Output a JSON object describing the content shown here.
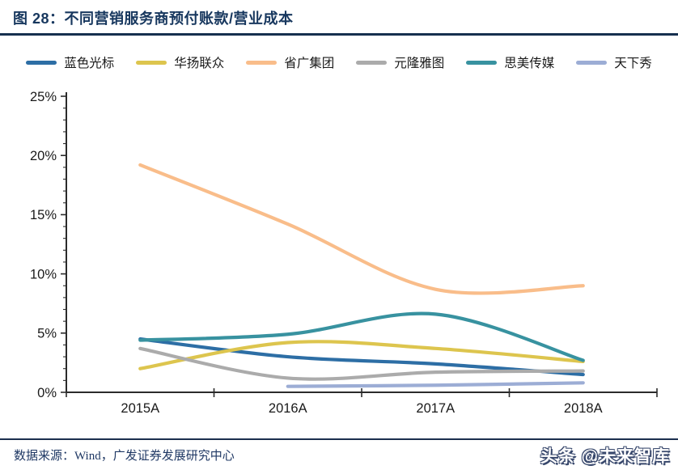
{
  "header": {
    "title": "图 28：不同营销服务商预付账款/营业成本"
  },
  "footer": {
    "source": "数据来源：Wind，广发证券发展研究中心",
    "watermark": "头条 @未来智库"
  },
  "colors": {
    "navy": "#17375e",
    "axis": "#2b2b2b",
    "tick_label": "#1a1a1a"
  },
  "chart_data": {
    "type": "line",
    "title": "不同营销服务商预付账款/营业成本",
    "categories": [
      "2015A",
      "2016A",
      "2017A",
      "2018A"
    ],
    "series": [
      {
        "name": "蓝色光标",
        "color": "#2d6ea5",
        "values": [
          4.5,
          3.0,
          2.4,
          1.5
        ]
      },
      {
        "name": "华扬联众",
        "color": "#ddc54e",
        "values": [
          2.0,
          4.2,
          3.7,
          2.6
        ]
      },
      {
        "name": "省广集团",
        "color": "#f9bd8a",
        "values": [
          19.2,
          14.2,
          8.7,
          9.0
        ]
      },
      {
        "name": "元隆雅图",
        "color": "#ababab",
        "values": [
          3.7,
          1.2,
          1.7,
          1.8
        ]
      },
      {
        "name": "思美传媒",
        "color": "#3892a0",
        "values": [
          4.4,
          4.9,
          6.6,
          2.7
        ]
      },
      {
        "name": "天下秀",
        "color": "#9cadd5",
        "values": [
          null,
          0.5,
          0.6,
          0.8
        ]
      }
    ],
    "ylim": [
      0,
      25
    ],
    "ytick_step": 5,
    "ytick_labels": [
      "0%",
      "5%",
      "10%",
      "15%",
      "20%",
      "25%"
    ],
    "minor_tick_step": 1,
    "legend_position": "top",
    "grid": false,
    "smooth": true
  }
}
